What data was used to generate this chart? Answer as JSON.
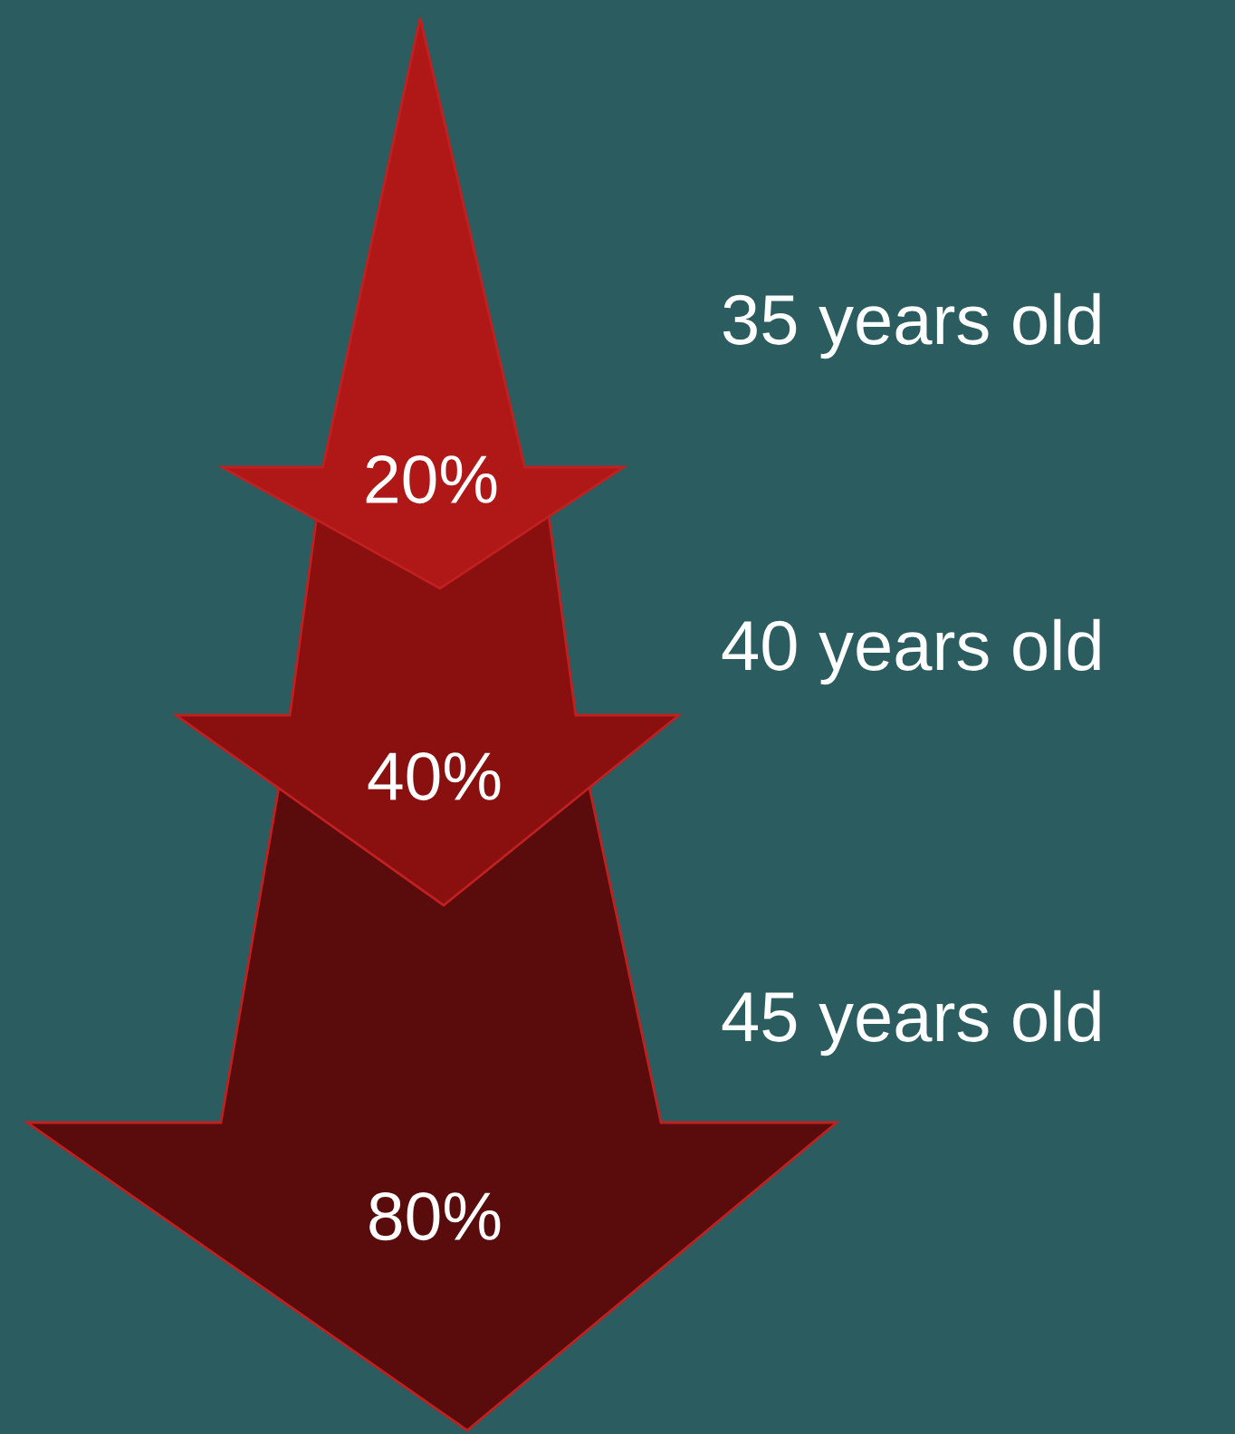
{
  "chart_data": {
    "type": "other",
    "categories": [
      "35 years old",
      "40 years old",
      "45 years old"
    ],
    "values": [
      20,
      40,
      80
    ],
    "value_labels": [
      "20%",
      "40%",
      "80%"
    ],
    "colors": [
      "#b01818",
      "#8a1010",
      "#5a0c0c"
    ]
  }
}
